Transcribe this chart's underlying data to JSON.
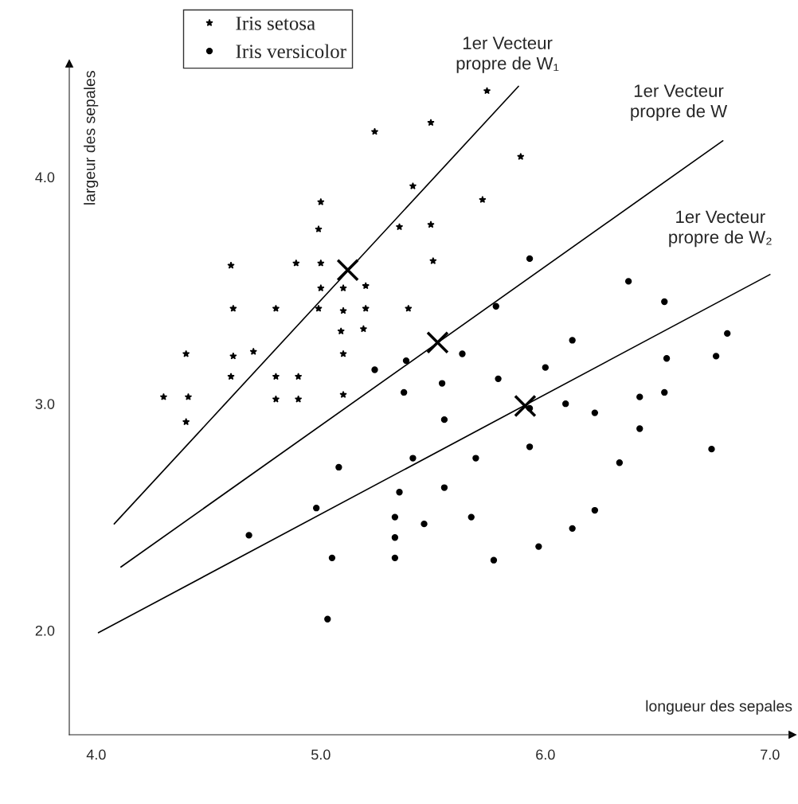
{
  "chart_data": {
    "type": "scatter",
    "xlabel": "longueur des sepales",
    "ylabel": "largeur des sepales",
    "xlim": [
      3.88,
      7.1
    ],
    "ylim": [
      1.54,
      4.5
    ],
    "xticks": [
      {
        "value": 4,
        "label": "4.0"
      },
      {
        "value": 5,
        "label": "5.0"
      },
      {
        "value": 6,
        "label": "6.0"
      },
      {
        "value": 7,
        "label": "7.0"
      }
    ],
    "yticks": [
      {
        "value": 2,
        "label": "2.0"
      },
      {
        "value": 3,
        "label": "3.0"
      },
      {
        "value": 4,
        "label": "4.0"
      }
    ],
    "grid": false,
    "legend": "top left",
    "series": [
      {
        "name": "Iris setosa",
        "marker": "star",
        "color": "#000000",
        "x": [
          5.74,
          5.24,
          5.49,
          5.89,
          5.41,
          5.0,
          5.72,
          4.99,
          5.35,
          5.49,
          4.6,
          4.89,
          5.0,
          5.5,
          5.0,
          5.1,
          5.2,
          4.61,
          4.8,
          4.99,
          5.1,
          5.2,
          5.39,
          5.09,
          5.19,
          4.4,
          4.61,
          4.7,
          5.1,
          4.6,
          4.8,
          4.9,
          4.3,
          4.41,
          4.8,
          4.9,
          5.1,
          4.4
        ],
        "values": [
          4.38,
          4.2,
          4.24,
          4.09,
          3.96,
          3.89,
          3.9,
          3.77,
          3.78,
          3.79,
          3.61,
          3.62,
          3.62,
          3.63,
          3.51,
          3.51,
          3.52,
          3.42,
          3.42,
          3.42,
          3.41,
          3.42,
          3.42,
          3.32,
          3.33,
          3.22,
          3.21,
          3.23,
          3.22,
          3.12,
          3.12,
          3.12,
          3.03,
          3.03,
          3.02,
          3.02,
          3.04,
          2.92
        ]
      },
      {
        "name": "Iris versicolor",
        "marker": "circle",
        "color": "#000000",
        "x": [
          5.93,
          6.37,
          6.53,
          5.78,
          6.12,
          5.63,
          5.38,
          5.24,
          6.0,
          6.54,
          5.79,
          5.54,
          5.37,
          6.53,
          6.42,
          5.93,
          6.09,
          6.22,
          5.55,
          6.42,
          5.93,
          5.41,
          5.69,
          5.08,
          6.33,
          5.35,
          5.55,
          4.98,
          5.33,
          5.46,
          5.67,
          6.22,
          4.68,
          5.33,
          6.12,
          5.97,
          5.05,
          5.33,
          5.77,
          5.03,
          6.81,
          6.76,
          6.74
        ],
        "values": [
          3.64,
          3.54,
          3.45,
          3.43,
          3.28,
          3.22,
          3.19,
          3.15,
          3.16,
          3.2,
          3.11,
          3.09,
          3.05,
          3.05,
          3.03,
          2.98,
          3.0,
          2.96,
          2.93,
          2.89,
          2.81,
          2.76,
          2.76,
          2.72,
          2.74,
          2.61,
          2.63,
          2.54,
          2.5,
          2.47,
          2.5,
          2.53,
          2.42,
          2.41,
          2.45,
          2.37,
          2.32,
          2.32,
          2.31,
          2.05,
          3.31,
          3.21,
          2.8
        ]
      },
      {
        "marker": "cross",
        "color": "#000000",
        "x": [
          5.12,
          5.52,
          5.91
        ],
        "values": [
          3.59,
          3.27,
          2.99
        ]
      },
      {
        "type": "line",
        "color": "#000000",
        "x": [
          4.08,
          5.88
        ],
        "values": [
          2.47,
          4.4
        ]
      },
      {
        "type": "line",
        "color": "#000000",
        "x": [
          4.11,
          6.79
        ],
        "values": [
          2.28,
          4.16
        ]
      },
      {
        "type": "line",
        "color": "#000000",
        "x": [
          4.01,
          7.0
        ],
        "values": [
          1.99,
          3.57
        ]
      }
    ],
    "annotations": [
      "1er Vecteur\npropre de W₁",
      "1er Vecteur\npropre de W",
      "1er Vecteur\npropre de W₂"
    ]
  }
}
